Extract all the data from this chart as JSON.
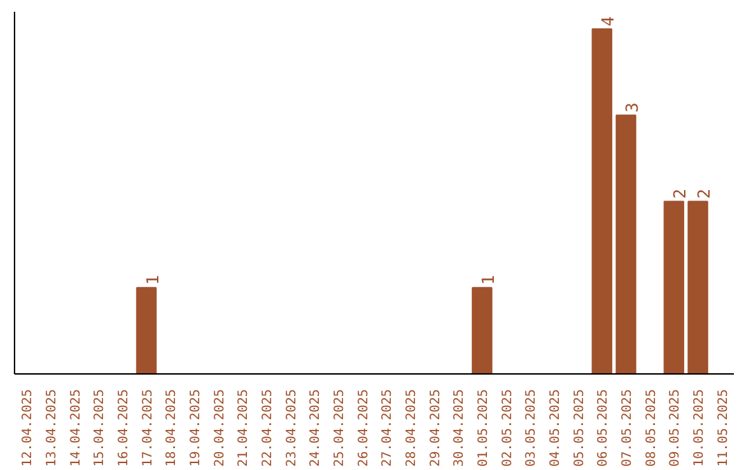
{
  "chart_data": {
    "type": "bar",
    "categories": [
      "12.04.2025",
      "13.04.2025",
      "14.04.2025",
      "15.04.2025",
      "16.04.2025",
      "17.04.2025",
      "18.04.2025",
      "19.04.2025",
      "20.04.2025",
      "21.04.2025",
      "22.04.2025",
      "23.04.2025",
      "24.04.2025",
      "25.04.2025",
      "26.04.2025",
      "27.04.2025",
      "28.04.2025",
      "29.04.2025",
      "30.04.2025",
      "01.05.2025",
      "02.05.2025",
      "03.05.2025",
      "04.05.2025",
      "05.05.2025",
      "06.05.2025",
      "07.05.2025",
      "08.05.2025",
      "09.05.2025",
      "10.05.2025",
      "11.05.2025"
    ],
    "values": [
      0,
      0,
      0,
      0,
      0,
      1,
      0,
      0,
      0,
      0,
      0,
      0,
      0,
      0,
      0,
      0,
      0,
      0,
      0,
      1,
      0,
      0,
      0,
      0,
      4,
      3,
      0,
      2,
      2,
      0
    ],
    "value_labels": [
      null,
      null,
      null,
      null,
      null,
      "1",
      null,
      null,
      null,
      null,
      null,
      null,
      null,
      null,
      null,
      null,
      null,
      null,
      null,
      "1",
      null,
      null,
      null,
      null,
      "4",
      "3",
      null,
      "2",
      "2",
      null
    ],
    "color": "#a0522d",
    "ylim": [
      0,
      4.2
    ],
    "tick_labels": "x",
    "grid": false
  }
}
